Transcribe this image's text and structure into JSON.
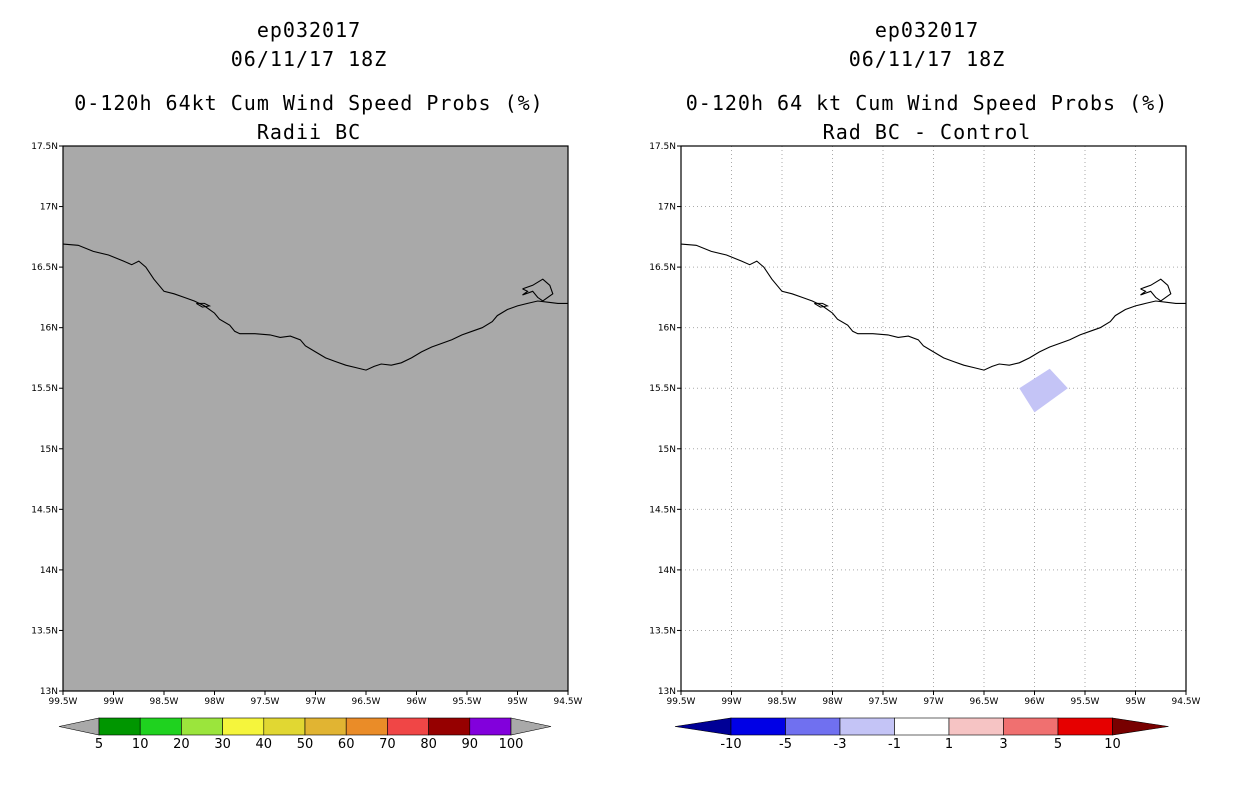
{
  "colors": {
    "land_gray": "#a9a9a9",
    "coast": "#000000",
    "grid": "#aaaaaa",
    "diff_shade": "#c4c4f6"
  },
  "left_panel": {
    "title_line1": "ep032017",
    "title_line2": "06/11/17 18Z",
    "title_line3": "0-120h 64kt Cum Wind Speed Probs (%)",
    "title_line4": "Radii BC",
    "colorbar": {
      "labels": [
        "5",
        "10",
        "20",
        "30",
        "40",
        "50",
        "60",
        "70",
        "80",
        "90",
        "100"
      ],
      "colors": [
        "#009600",
        "#1fd21f",
        "#9be53c",
        "#f5f53c",
        "#e1d732",
        "#e1b432",
        "#ea8c28",
        "#f04646",
        "#960000",
        "#8200dc"
      ],
      "end_color": "#a9a9a9"
    }
  },
  "right_panel": {
    "title_line1": "ep032017",
    "title_line2": "06/11/17 18Z",
    "title_line3": "0-120h 64 kt Cum Wind Speed Probs (%)",
    "title_line4": "Rad BC - Control",
    "colorbar": {
      "labels": [
        "-10",
        "-5",
        "-3",
        "-1",
        "1",
        "3",
        "5",
        "10"
      ],
      "colors": [
        "#0000e6",
        "#7070f0",
        "#c4c4f6",
        "#ffffff",
        "#f6c4c4",
        "#f07070",
        "#e60000"
      ],
      "low_end_color": "#000096",
      "high_end_color": "#780000"
    }
  },
  "map": {
    "lon_ticks": [
      "99.5W",
      "99W",
      "98.5W",
      "98W",
      "97.5W",
      "97W",
      "96.5W",
      "96W",
      "95.5W",
      "95W",
      "94.5W"
    ],
    "lat_ticks": [
      "13N",
      "13.5N",
      "14N",
      "14.5N",
      "15N",
      "15.5N",
      "16N",
      "16.5N",
      "17N",
      "17.5N"
    ],
    "lon_range": [
      -99.5,
      -94.5
    ],
    "lat_range": [
      13,
      17.5
    ]
  },
  "diff_region": {
    "lons": [
      -96.15,
      -95.85,
      -95.67,
      -96.0
    ],
    "lats": [
      15.5,
      15.66,
      15.5,
      15.3
    ]
  },
  "coastline": {
    "lons": [
      -99.5,
      -99.35,
      -99.2,
      -99.05,
      -98.9,
      -98.82,
      -98.75,
      -98.68,
      -98.6,
      -98.5,
      -98.4,
      -98.3,
      -98.2,
      -98.1,
      -98.0,
      -97.95,
      -97.85,
      -97.8,
      -97.75,
      -97.6,
      -97.45,
      -97.35,
      -97.25,
      -97.15,
      -97.1,
      -97.0,
      -96.9,
      -96.8,
      -96.7,
      -96.6,
      -96.5,
      -96.42,
      -96.35,
      -96.25,
      -96.15,
      -96.05,
      -95.95,
      -95.85,
      -95.75,
      -95.65,
      -95.55,
      -95.45,
      -95.35,
      -95.25,
      -95.2,
      -95.1,
      -95.0,
      -94.9,
      -94.8,
      -94.7,
      -94.6,
      -94.5
    ],
    "lats": [
      16.69,
      16.68,
      16.63,
      16.6,
      16.55,
      16.52,
      16.55,
      16.5,
      16.4,
      16.3,
      16.28,
      16.25,
      16.22,
      16.18,
      16.12,
      16.07,
      16.02,
      15.97,
      15.95,
      15.95,
      15.94,
      15.92,
      15.93,
      15.9,
      15.85,
      15.8,
      15.75,
      15.72,
      15.69,
      15.67,
      15.65,
      15.68,
      15.7,
      15.69,
      15.71,
      15.75,
      15.8,
      15.84,
      15.87,
      15.9,
      15.94,
      15.97,
      16.0,
      16.05,
      16.1,
      16.15,
      16.18,
      16.2,
      16.22,
      16.21,
      16.2,
      16.2
    ]
  },
  "inland_feature": {
    "lons": [
      -94.95,
      -94.85,
      -94.75,
      -94.68,
      -94.65,
      -94.75,
      -94.8,
      -94.85,
      -94.95,
      -94.9,
      -94.95
    ],
    "lats": [
      16.32,
      16.35,
      16.4,
      16.35,
      16.28,
      16.22,
      16.25,
      16.3,
      16.27,
      16.3,
      16.32
    ]
  },
  "small_lagoon": {
    "lons": [
      -98.18,
      -98.1,
      -98.05,
      -98.12,
      -98.18
    ],
    "lats": [
      16.2,
      16.2,
      16.18,
      16.17,
      16.2
    ]
  }
}
